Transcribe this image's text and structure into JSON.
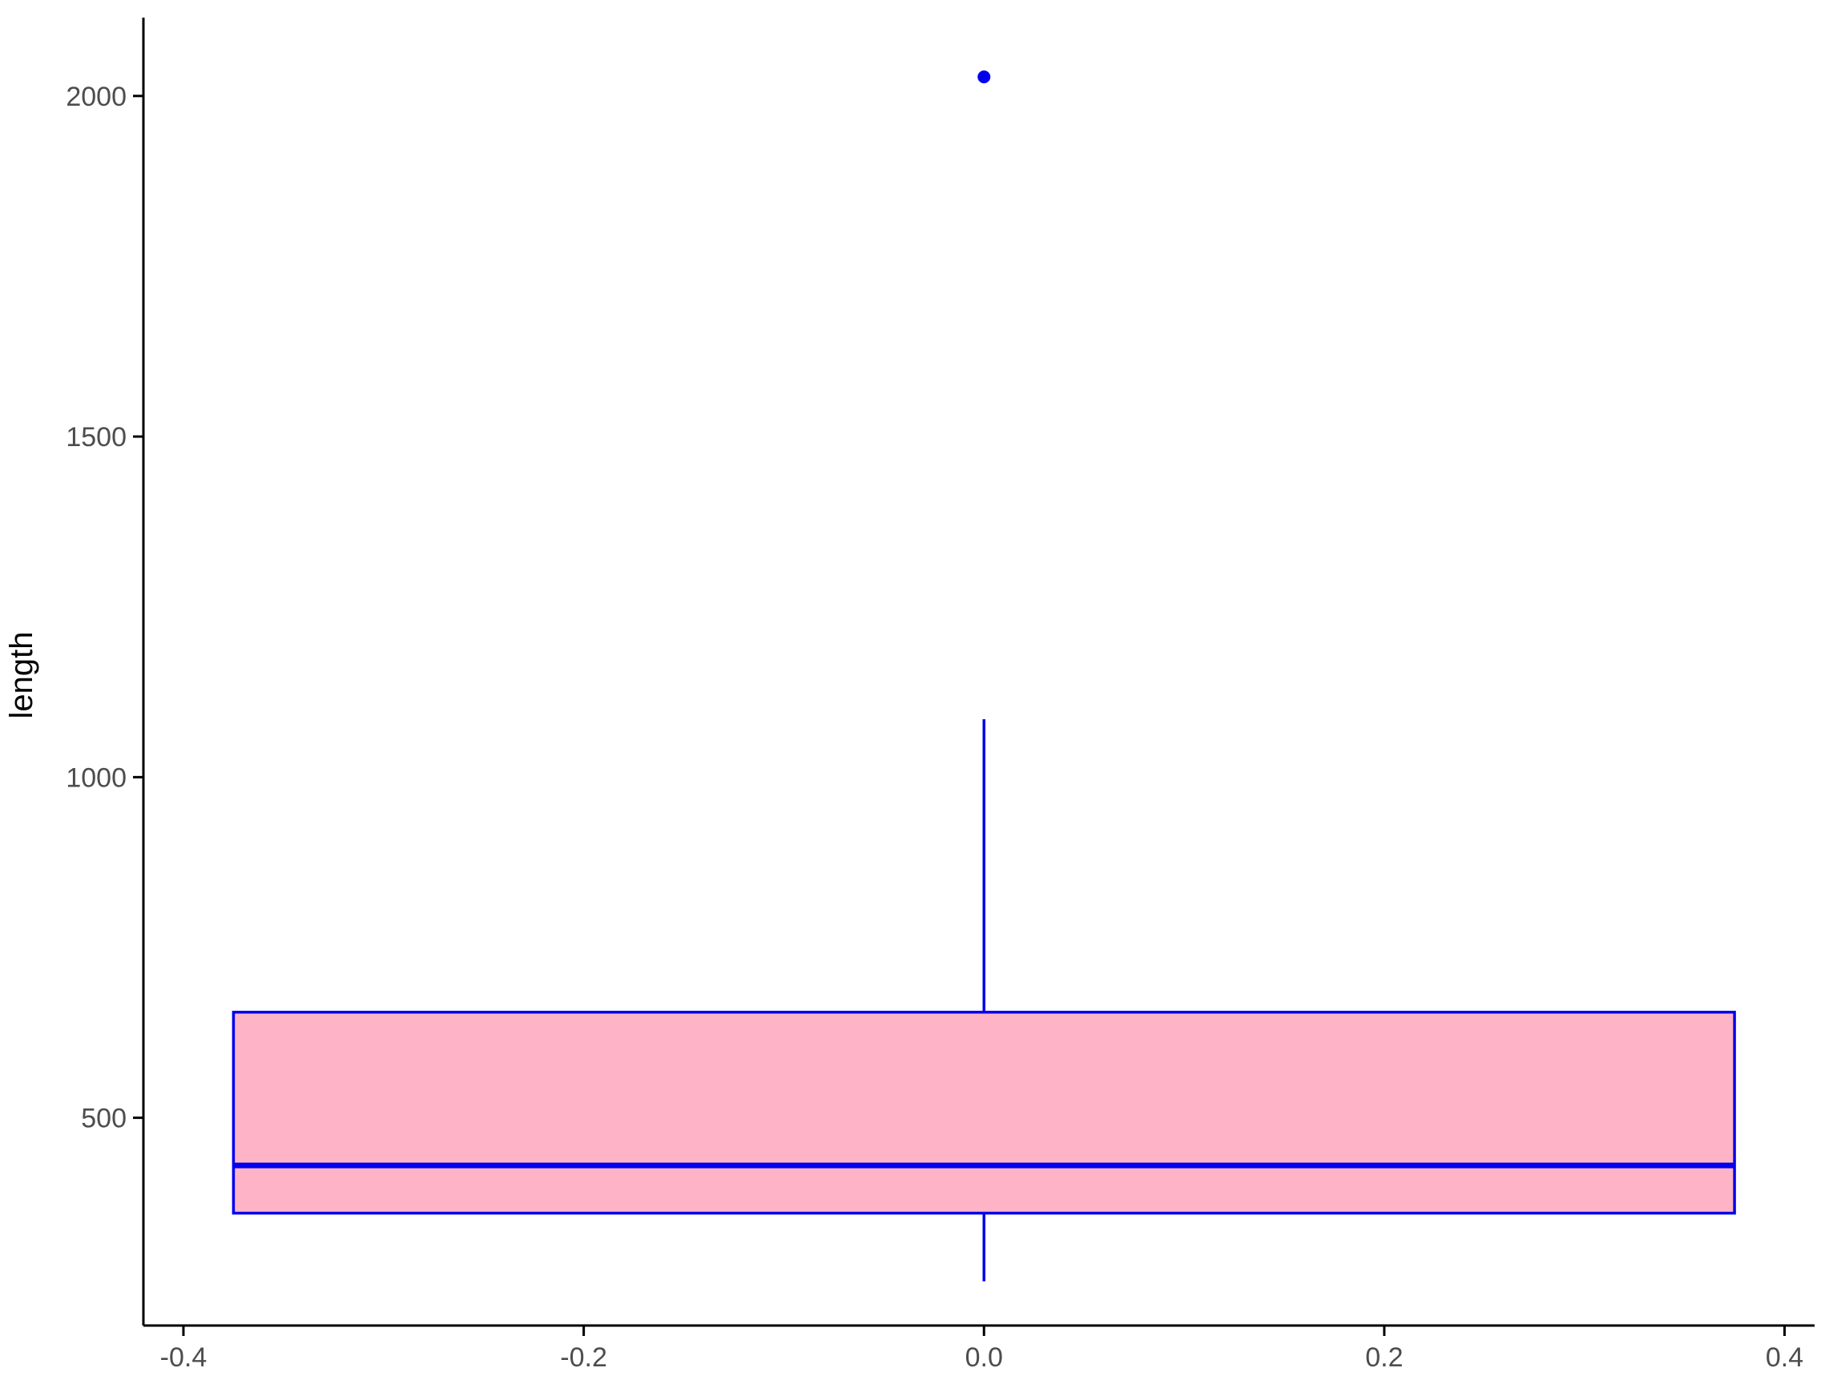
{
  "chart_data": {
    "type": "boxplot",
    "title": "",
    "xlabel": "",
    "ylabel": "length",
    "xlim": [
      -0.42,
      0.415
    ],
    "ylim": [
      195,
      2115
    ],
    "x_ticks": [
      -0.4,
      -0.2,
      0.0,
      0.2,
      0.4
    ],
    "x_tick_labels": [
      "-0.4",
      "-0.2",
      "0.0",
      "0.2",
      "0.4"
    ],
    "y_ticks": [
      500,
      1000,
      1500,
      2000
    ],
    "y_tick_labels": [
      "500",
      "1000",
      "1500",
      "2000"
    ],
    "grid": false,
    "legend": "none",
    "box": {
      "x_center": 0.0,
      "x_min": -0.375,
      "x_max": 0.375,
      "lower_whisker": 260,
      "q1": 360,
      "median": 430,
      "q3": 655,
      "upper_whisker": 1085,
      "outliers": [
        2028
      ]
    },
    "colors": {
      "box_fill": "#ffb3c6",
      "box_stroke": "#0000ee",
      "axis": "#000000",
      "tick_label": "#4d4d4d"
    }
  }
}
